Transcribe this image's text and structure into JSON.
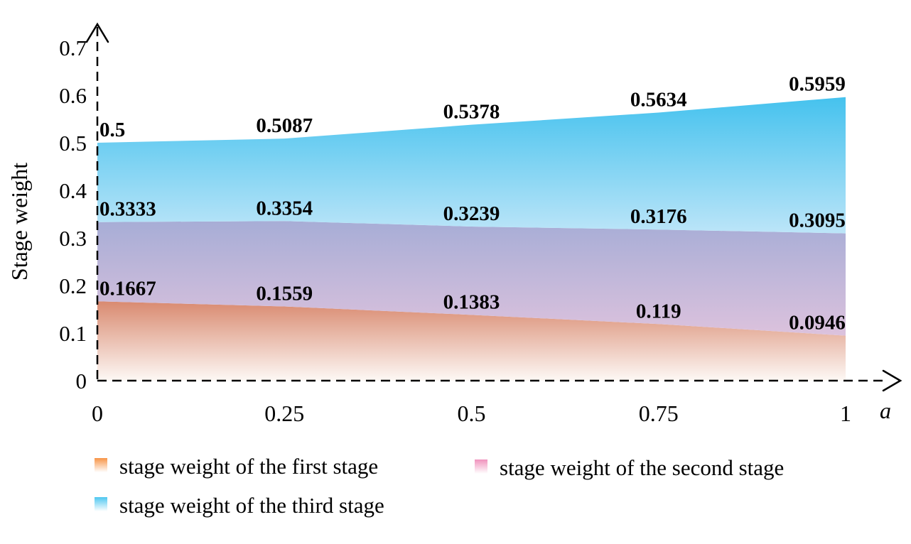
{
  "chart_data": {
    "type": "area",
    "xlabel": "a",
    "ylabel": "Stage weight",
    "x": [
      0,
      0.25,
      0.5,
      0.75,
      1
    ],
    "x_tick_labels": [
      "0",
      "0.25",
      "0.5",
      "0.75",
      "1"
    ],
    "y_ticks": [
      0,
      0.1,
      0.2,
      0.3,
      0.4,
      0.5,
      0.6,
      0.7
    ],
    "y_tick_labels": [
      "0",
      "0.1",
      "0.2",
      "0.3",
      "0.4",
      "0.5",
      "0.6",
      "0.7"
    ],
    "xlim": [
      0,
      1
    ],
    "ylim": [
      0,
      0.7
    ],
    "grid": false,
    "legend_position": "bottom",
    "axis_style": "dashed-with-arrows",
    "axis_color": "#000000",
    "text_color": "#000000",
    "series": [
      {
        "name": "stage weight of the first stage",
        "values": [
          0.1667,
          0.1559,
          0.1383,
          0.119,
          0.0946
        ],
        "value_labels": [
          "0.1667",
          "0.1559",
          "0.1383",
          "0.119",
          "0.0946"
        ],
        "area_gradient_top": "#d98a70",
        "area_gradient_bottom": "#fdf8f5",
        "legend_gradient_top": "#f79447",
        "legend_gradient_bottom": "#ffffff"
      },
      {
        "name": "stage weight of the second stage",
        "values": [
          0.3333,
          0.3354,
          0.3239,
          0.3176,
          0.3095
        ],
        "value_labels": [
          "0.3333",
          "0.3354",
          "0.3239",
          "0.3176",
          "0.3095"
        ],
        "area_gradient_top": "#a7add6",
        "area_gradient_bottom": "#dcc2dd",
        "legend_gradient_top": "#f092bd",
        "legend_gradient_bottom": "#ffffff"
      },
      {
        "name": "stage weight of the third stage",
        "values": [
          0.5,
          0.5087,
          0.5378,
          0.5634,
          0.5959
        ],
        "value_labels": [
          "0.5",
          "0.5087",
          "0.5378",
          "0.5634",
          "0.5959"
        ],
        "area_gradient_top": "#45c2ee",
        "area_gradient_bottom": "#bce5f8",
        "legend_gradient_top": "#4ec7f0",
        "legend_gradient_bottom": "#ffffff"
      }
    ]
  }
}
